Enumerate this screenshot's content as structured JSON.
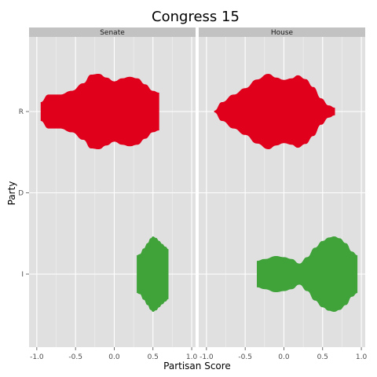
{
  "chart_data": {
    "type": "violin",
    "title": "Congress 15",
    "xlabel": "Partisan Score",
    "ylabel": "Party",
    "xlim": [
      -1.1,
      1.05
    ],
    "x_ticks": [
      -1.0,
      -0.5,
      0.0,
      0.5,
      1.0
    ],
    "x_tick_labels": [
      "-1.0",
      "-0.5",
      "0.0",
      "0.5",
      "1.0"
    ],
    "categories": [
      "R",
      "D",
      "I"
    ],
    "grid": true,
    "colors": {
      "R": "#e0001b",
      "I": "#3fa33a",
      "panel": "#e0e0e0",
      "strip": "#c2c2c2"
    },
    "panels": [
      {
        "name": "Senate",
        "violins": [
          {
            "party": "R",
            "profile": [
              [
                -0.95,
                0.25
              ],
              [
                -0.85,
                0.45
              ],
              [
                -0.7,
                0.45
              ],
              [
                -0.55,
                0.55
              ],
              [
                -0.4,
                0.75
              ],
              [
                -0.3,
                0.98
              ],
              [
                -0.2,
                1.0
              ],
              [
                -0.1,
                0.9
              ],
              [
                0.0,
                0.8
              ],
              [
                0.1,
                0.88
              ],
              [
                0.2,
                0.92
              ],
              [
                0.3,
                0.88
              ],
              [
                0.4,
                0.72
              ],
              [
                0.5,
                0.55
              ],
              [
                0.58,
                0.5
              ]
            ]
          },
          {
            "party": "I",
            "profile": [
              [
                0.29,
                0.5
              ],
              [
                0.33,
                0.53
              ],
              [
                0.38,
                0.68
              ],
              [
                0.43,
                0.82
              ],
              [
                0.47,
                0.95
              ],
              [
                0.5,
                1.0
              ],
              [
                0.54,
                0.96
              ],
              [
                0.58,
                0.88
              ],
              [
                0.62,
                0.8
              ],
              [
                0.66,
                0.73
              ],
              [
                0.7,
                0.66
              ]
            ]
          }
        ]
      },
      {
        "name": "House",
        "violins": [
          {
            "party": "R",
            "profile": [
              [
                -0.9,
                0.02
              ],
              [
                -0.8,
                0.25
              ],
              [
                -0.65,
                0.45
              ],
              [
                -0.5,
                0.62
              ],
              [
                -0.35,
                0.85
              ],
              [
                -0.2,
                1.0
              ],
              [
                -0.1,
                0.9
              ],
              [
                0.0,
                0.84
              ],
              [
                0.1,
                0.88
              ],
              [
                0.18,
                0.96
              ],
              [
                0.28,
                0.86
              ],
              [
                0.38,
                0.65
              ],
              [
                0.48,
                0.35
              ],
              [
                0.58,
                0.16
              ],
              [
                0.66,
                0.1
              ]
            ]
          },
          {
            "party": "I",
            "profile": [
              [
                -0.35,
                0.35
              ],
              [
                -0.25,
                0.4
              ],
              [
                -0.1,
                0.48
              ],
              [
                0.0,
                0.45
              ],
              [
                0.1,
                0.4
              ],
              [
                0.2,
                0.28
              ],
              [
                0.3,
                0.45
              ],
              [
                0.4,
                0.7
              ],
              [
                0.5,
                0.88
              ],
              [
                0.58,
                0.97
              ],
              [
                0.65,
                1.0
              ],
              [
                0.72,
                0.95
              ],
              [
                0.8,
                0.82
              ],
              [
                0.88,
                0.6
              ],
              [
                0.95,
                0.5
              ]
            ]
          }
        ]
      }
    ]
  }
}
